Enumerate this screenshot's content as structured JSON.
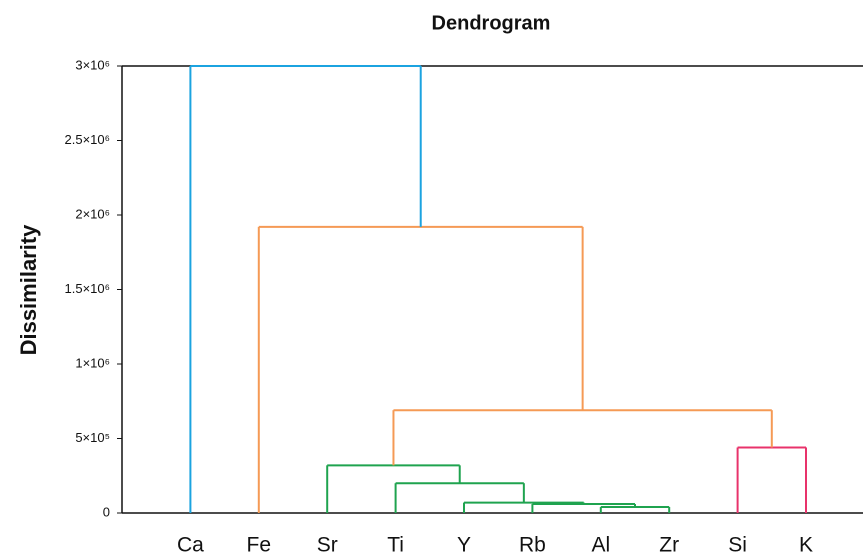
{
  "chart_data": {
    "type": "dendrogram",
    "title": "Dendrogram",
    "y_label": "Dissimilarity",
    "categories": [
      "Ca",
      "Fe",
      "Sr",
      "Ti",
      "Y",
      "Rb",
      "Al",
      "Zr",
      "Si",
      "K"
    ],
    "merges": [
      {
        "children": [
          6,
          7
        ],
        "height": 40000,
        "color": "#1fa34f"
      },
      {
        "children": [
          5,
          10
        ],
        "height": 60000,
        "color": "#1fa34f"
      },
      {
        "children": [
          4,
          11
        ],
        "height": 70000,
        "color": "#1fa34f"
      },
      {
        "children": [
          3,
          12
        ],
        "height": 200000,
        "color": "#1fa34f"
      },
      {
        "children": [
          2,
          13
        ],
        "height": 320000,
        "color": "#1fa34f"
      },
      {
        "children": [
          8,
          9
        ],
        "height": 440000,
        "color": "#e8336b"
      },
      {
        "children": [
          14,
          15
        ],
        "height": 690000,
        "color": "#f59a55"
      },
      {
        "children": [
          1,
          16
        ],
        "height": 1920000,
        "color": "#f59a55"
      },
      {
        "children": [
          0,
          17
        ],
        "height": 3000000,
        "color": "#1ba3e0"
      }
    ],
    "ylim": [
      0,
      3000000
    ],
    "yticks": [
      0,
      {
        "value": 500000,
        "label": "5×10⁵"
      },
      {
        "value": 1000000,
        "label": "1×10⁶"
      },
      {
        "value": 1500000,
        "label": "1.5×10⁶"
      },
      {
        "value": 2000000,
        "label": "2×10⁶"
      },
      {
        "value": 2500000,
        "label": "2.5×10⁶"
      },
      {
        "value": 3000000,
        "label": "3×10⁶"
      }
    ]
  }
}
